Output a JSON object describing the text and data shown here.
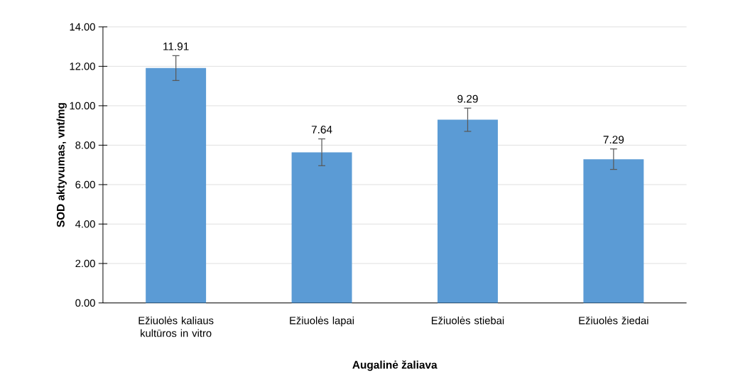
{
  "chart_data": {
    "type": "bar",
    "xlabel": "Augalinė žaliava",
    "ylabel": "SOD aktyvumas, vnt/mg",
    "categories": [
      "Ežiuolės kaliaus kultūros in vitro",
      "Ežiuolės lapai",
      "Ežiuolės stiebai",
      "Ežiuolės žiedai"
    ],
    "values": [
      11.91,
      7.64,
      9.29,
      7.29
    ],
    "errors": [
      0.63,
      0.68,
      0.59,
      0.52
    ],
    "color": "#5b9bd5",
    "data_labels": true,
    "ylim": [
      0,
      14
    ],
    "yticks": [
      {
        "value": 0,
        "label": "0.00"
      },
      {
        "value": 2,
        "label": "2.00"
      },
      {
        "value": 4,
        "label": "4.00"
      },
      {
        "value": 6,
        "label": "6.00"
      },
      {
        "value": 8,
        "label": "8.00"
      },
      {
        "value": 10,
        "label": "10.00"
      },
      {
        "value": 12,
        "label": "12.00"
      },
      {
        "value": 14,
        "label": "14.00"
      }
    ],
    "grid": "y"
  }
}
